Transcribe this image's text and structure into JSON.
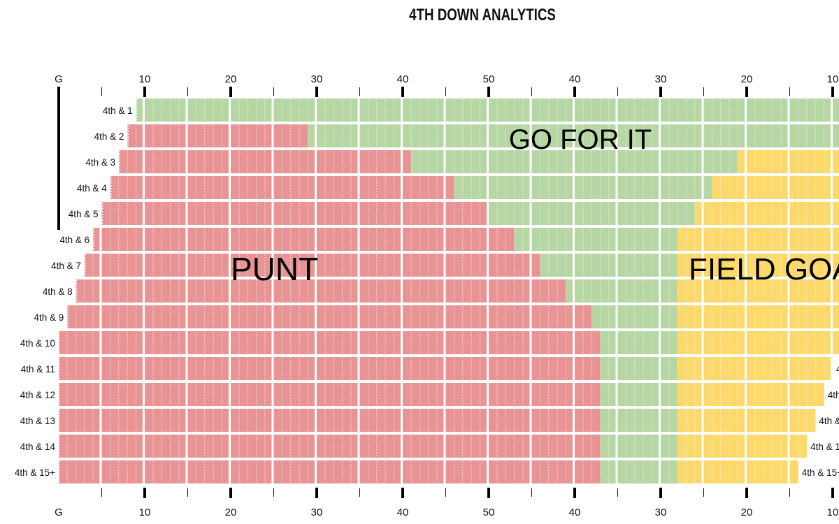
{
  "chart_data": {
    "type": "bar",
    "title": "4TH DOWN ANALYTICS",
    "x_axis": {
      "unit": "yards from own goal line",
      "range": [
        0,
        100
      ],
      "tick_labels": [
        "G",
        "10",
        "20",
        "30",
        "40",
        "50",
        "40",
        "30",
        "20",
        "10"
      ]
    },
    "colors": {
      "punt": "#e89494",
      "go": "#b6d7a3",
      "field_goal": "#fdd96c"
    },
    "region_labels": {
      "go": "GO FOR IT",
      "punt": "PUNT",
      "field_goal": "FIELD GOAL"
    },
    "rows": [
      {
        "label": "4th & 1",
        "start": 9,
        "punt_until": 9,
        "go_until": 100,
        "end": 100
      },
      {
        "label": "4th & 2",
        "start": 8,
        "punt_until": 29,
        "go_until": 100,
        "end": 100
      },
      {
        "label": "4th & 3",
        "start": 7,
        "punt_until": 41,
        "go_until": 79,
        "end": 100
      },
      {
        "label": "4th & 4",
        "start": 6,
        "punt_until": 46,
        "go_until": 76,
        "end": 100
      },
      {
        "label": "4th & 5",
        "start": 5,
        "punt_until": 50,
        "go_until": 74,
        "end": 100
      },
      {
        "label": "4th & 6",
        "start": 4,
        "punt_until": 53,
        "go_until": 72,
        "end": 100
      },
      {
        "label": "4th & 7",
        "start": 3,
        "punt_until": 56,
        "go_until": 72,
        "end": 100
      },
      {
        "label": "4th & 8",
        "start": 2,
        "punt_until": 59,
        "go_until": 72,
        "end": 100
      },
      {
        "label": "4th & 9",
        "start": 1,
        "punt_until": 62,
        "go_until": 72,
        "end": 100
      },
      {
        "label": "4th & 10",
        "start": 0,
        "punt_until": 63,
        "go_until": 72,
        "end": 100
      },
      {
        "label": "4th & 11",
        "start": 0,
        "punt_until": 63,
        "go_until": 72,
        "end": 90
      },
      {
        "label": "4th & 12",
        "start": 0,
        "punt_until": 63,
        "go_until": 72,
        "end": 89
      },
      {
        "label": "4th & 13",
        "start": 0,
        "punt_until": 63,
        "go_until": 72,
        "end": 88
      },
      {
        "label": "4th & 14",
        "start": 0,
        "punt_until": 63,
        "go_until": 72,
        "end": 87
      },
      {
        "label": "4th & 15+",
        "start": 0,
        "punt_until": 63,
        "go_until": 72,
        "end": 86
      }
    ]
  }
}
